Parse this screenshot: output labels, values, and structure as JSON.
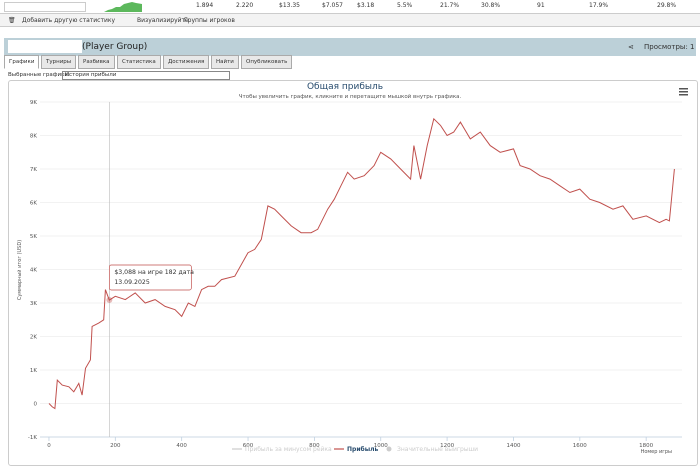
{
  "stats_row": [
    "1.894",
    "2.220",
    "$13.35",
    "$7.057",
    "$3.18",
    "5.5%",
    "21.7%",
    "30.8%",
    "91",
    "17.9%",
    "29.8%"
  ],
  "toolbar": {
    "add_stat": "Добавить другую статистику",
    "visualize": "Визуализируйте",
    "groups": "Группы игроков"
  },
  "header": {
    "title": "(Player Group)",
    "views": "Просмотры: 1"
  },
  "tabs": [
    "Графики",
    "Турниры",
    "Разбивка",
    "Статистика",
    "Достижения",
    "Найти",
    "Опубликовать"
  ],
  "selector": {
    "label": "Выбранные графики:",
    "value": "История прибыли"
  },
  "tooltip": {
    "line1": "$3,088 на игре 182 дата",
    "line2": "13.09.2025"
  },
  "chart_data": {
    "type": "line",
    "title": "Общая прибыль",
    "subtitle": "Чтобы увеличить график, кликните и перетащите мышкой внутрь графика.",
    "y_label": "Суммарный итог (USD)",
    "x_label": "Номер игры",
    "x": [
      0,
      10,
      18,
      25,
      40,
      60,
      75,
      90,
      100,
      110,
      125,
      130,
      150,
      165,
      170,
      182,
      200,
      230,
      260,
      290,
      320,
      350,
      380,
      400,
      420,
      440,
      460,
      480,
      500,
      520,
      560,
      600,
      620,
      640,
      660,
      680,
      700,
      730,
      760,
      790,
      810,
      840,
      860,
      880,
      900,
      920,
      950,
      980,
      1000,
      1030,
      1060,
      1090,
      1100,
      1120,
      1140,
      1160,
      1180,
      1200,
      1220,
      1240,
      1270,
      1300,
      1330,
      1360,
      1400,
      1420,
      1450,
      1480,
      1510,
      1540,
      1570,
      1600,
      1630,
      1660,
      1700,
      1730,
      1760,
      1800,
      1840,
      1860,
      1870,
      1885
    ],
    "series": [
      {
        "name": "Прибыль",
        "color": "#c0504d",
        "values": [
          0,
          -100,
          -150,
          700,
          550,
          500,
          350,
          600,
          250,
          1050,
          1300,
          2300,
          2400,
          2500,
          3400,
          3088,
          3200,
          3100,
          3300,
          3000,
          3100,
          2900,
          2800,
          2600,
          3000,
          2900,
          3400,
          3500,
          3500,
          3700,
          3800,
          4500,
          4600,
          4900,
          5900,
          5800,
          5600,
          5300,
          5100,
          5100,
          5200,
          5800,
          6100,
          6500,
          6900,
          6700,
          6800,
          7100,
          7500,
          7300,
          7000,
          6700,
          7700,
          6700,
          7700,
          8500,
          8300,
          8000,
          8100,
          8400,
          7900,
          8100,
          7700,
          7500,
          7600,
          7100,
          7000,
          6800,
          6700,
          6500,
          6300,
          6400,
          6100,
          6000,
          5800,
          5900,
          5500,
          5600,
          5400,
          5500,
          5450,
          7000
        ]
      }
    ],
    "hidden_series": [
      {
        "name": "Прибыль за минусом рейка",
        "color": "#cccccc"
      },
      {
        "name": "Значительные выигрыши",
        "color": "#cccccc"
      }
    ],
    "xlim": [
      -27,
      1908
    ],
    "xticks": [
      0,
      200,
      400,
      600,
      800,
      1000,
      1200,
      1400,
      1600,
      1800
    ],
    "ylim": [
      -1000,
      9000
    ],
    "yticks": [
      {
        "value": -1000,
        "label": "-1K"
      },
      0,
      {
        "value": 1000,
        "label": "1K"
      },
      {
        "value": 2000,
        "label": "2K"
      },
      {
        "value": 3000,
        "label": "3K"
      },
      {
        "value": 4000,
        "label": "4K"
      },
      {
        "value": 5000,
        "label": "5K"
      },
      {
        "value": 6000,
        "label": "6K"
      },
      {
        "value": 7000,
        "label": "7K"
      },
      {
        "value": 8000,
        "label": "8K"
      },
      {
        "value": 9000,
        "label": "9K"
      }
    ],
    "grid": true,
    "highlight_index": 15
  }
}
